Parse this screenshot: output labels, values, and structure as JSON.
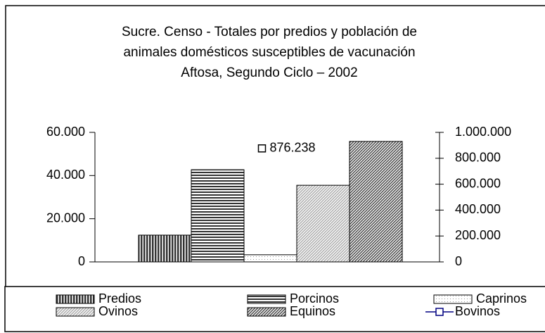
{
  "chart_data": {
    "type": "bar",
    "title": [
      "Sucre. Censo - Totales por predios  y población de",
      "animales domésticos susceptibles de vacunación",
      "Aftosa, Segundo Ciclo – 2002"
    ],
    "categories": [
      null
    ],
    "series": [
      {
        "name": "Predios",
        "color": "#333333",
        "pattern": "vertical",
        "values": [
          12400
        ]
      },
      {
        "name": "Porcinos",
        "color": "#333333",
        "pattern": "horizontal",
        "values": [
          42700
        ]
      },
      {
        "name": "Caprinos",
        "color": "#999999",
        "pattern": "dots",
        "values": [
          3300
        ]
      },
      {
        "name": "Ovinos",
        "color": "#aaaaaa",
        "pattern": "diagonal",
        "values": [
          35500
        ]
      },
      {
        "name": "Equinos",
        "color": "#444444",
        "pattern": "diagonal",
        "values": [
          55800
        ]
      },
      {
        "name": "Bovinos",
        "color": "#000080",
        "axis": "y2",
        "values": [
          876238
        ],
        "value_labels": [
          "876.238"
        ]
      }
    ],
    "ylim": [
      0,
      60000
    ],
    "yticks": [
      0,
      {
        "value": 20000,
        "label": "20.000"
      },
      {
        "value": 40000,
        "label": "40.000"
      },
      {
        "value": 60000,
        "label": "60.000"
      }
    ],
    "y2lim": [
      0,
      1000000
    ],
    "y2ticks": [
      0,
      {
        "value": 200000,
        "label": "200.000"
      },
      {
        "value": 400000,
        "label": "400.000"
      },
      {
        "value": 600000,
        "label": "600.000"
      },
      {
        "value": 800000,
        "label": "800.000"
      },
      {
        "value": 1000000,
        "label": "1.000.000"
      }
    ],
    "legend": "bottom"
  }
}
